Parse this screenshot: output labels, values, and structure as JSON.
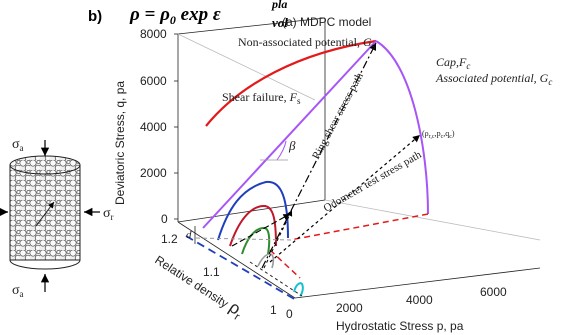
{
  "panel_label": "b)",
  "equation": {
    "lhs": "ρ = ρ",
    "lhs_sub": "0",
    "rhs": " exp ε",
    "sup": "pla",
    "sub": "vol"
  },
  "title": "(a) MDPC model",
  "axes": {
    "q_label": "Deviatoric Stress, q, pa",
    "p_label": "Hydrostatic Stress  p, pa",
    "rho_label": "Relative density ",
    "rho_symbol": "ρ",
    "rho_sub": "r",
    "q_ticks": [
      "0",
      "2000",
      "4000",
      "6000",
      "8000"
    ],
    "p_ticks": [
      "0",
      "2000",
      "4000",
      "6000"
    ],
    "rho_ticks": [
      "1",
      "1.1",
      "1.2"
    ]
  },
  "annotations": {
    "nonassoc": "Non-associated potential, ",
    "nonassoc_sym": "G",
    "nonassoc_sub": "s",
    "cap1": "Cap,",
    "cap1_sym": "F",
    "cap1_sub": "c",
    "cap2": "Associated potential, ",
    "cap2_sym": "G",
    "cap2_sub": "c",
    "shear": "Shear failure, ",
    "shear_sym": "F",
    "shear_sub": "s",
    "beta": "β",
    "ring": "Ring shear stress path",
    "odo": "Odometer test stress path",
    "point": "(ρ",
    "point_rest": "p",
    "point_q": "q",
    "d_label": "d"
  },
  "specimen": {
    "sigma_a": "σ",
    "sigma_a_sub": "a",
    "sigma_r": "σ",
    "sigma_r_sub": "r"
  },
  "colors": {
    "nonassoc": "#e31a1c",
    "shear_cap": "#a855f7",
    "level_blue": "#1f3fbf",
    "level_red": "#c0182a",
    "level_green": "#2e8b2e",
    "level_gray": "#999999",
    "level_cyan": "#16c0d0",
    "dash_red": "#e31a1c",
    "dash_blue": "#1f3fbf"
  }
}
